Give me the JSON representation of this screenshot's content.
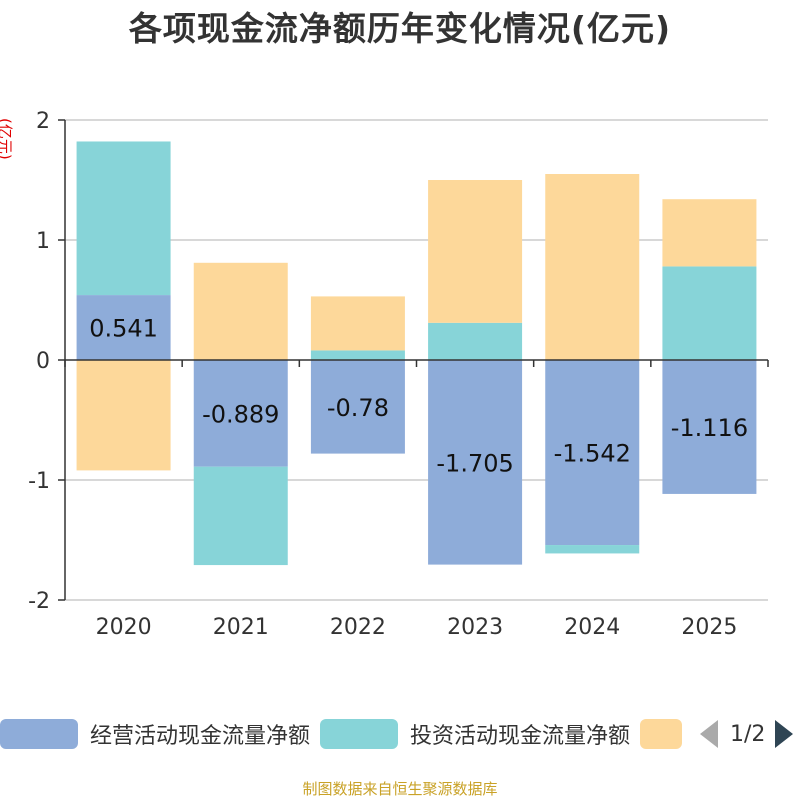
{
  "chart_data": {
    "type": "bar",
    "stacked": true,
    "title": "各项现金流净额历年变化情况(亿元)",
    "ylabel": "(亿元)",
    "xlabel": "",
    "ylim": [
      -2,
      2
    ],
    "yticks": [
      2,
      1,
      0,
      -1,
      -2
    ],
    "categories": [
      "2020",
      "2021",
      "2022",
      "2023",
      "2024",
      "2025"
    ],
    "series": [
      {
        "name": "经营活动现金流量净额",
        "color": "#8eacd9",
        "values": [
          0.541,
          -0.889,
          -0.78,
          -1.705,
          -1.542,
          -1.116
        ],
        "labels": [
          "0.541",
          "-0.889",
          "-0.78",
          "-1.705",
          "-1.542",
          "-1.116"
        ]
      },
      {
        "name": "投资活动现金流量净额",
        "color": "#87d4d8",
        "values": [
          1.28,
          -0.82,
          0.08,
          0.31,
          -0.07,
          0.78
        ]
      },
      {
        "name": "",
        "color": "#fdd89a",
        "values": [
          -0.92,
          0.81,
          0.45,
          1.19,
          1.55,
          0.56
        ]
      }
    ],
    "legend_position": "bottom"
  },
  "legend": {
    "page_indicator": "1/2"
  },
  "source": "制图数据来自恒生聚源数据库"
}
